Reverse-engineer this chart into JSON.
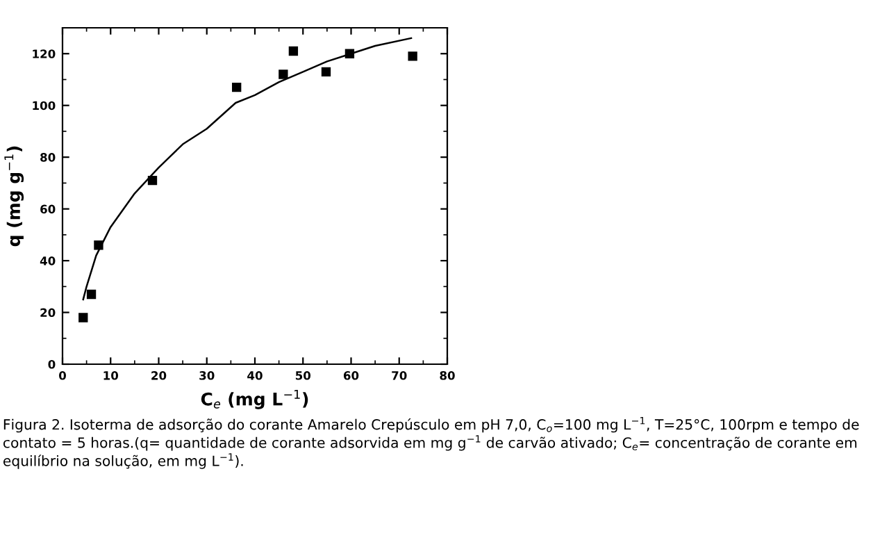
{
  "chart_data": {
    "type": "scatter",
    "xlabel": "C$_{e}$ (mg L$^{−1}$)",
    "ylabel": "q (mg g$^{−1}$)",
    "xlim": [
      0,
      80
    ],
    "ylim": [
      0,
      130
    ],
    "xticks": [
      0,
      10,
      20,
      30,
      40,
      50,
      60,
      70,
      80
    ],
    "yticks": [
      0,
      20,
      40,
      60,
      80,
      100,
      120
    ],
    "grid": false,
    "series": [
      {
        "marker": "square",
        "color": "#000000",
        "x": [
          4.3,
          6,
          7.5,
          18.7,
          36.2,
          45.9,
          48,
          54.8,
          59.7,
          72.8
        ],
        "values": [
          18,
          27,
          46,
          71,
          107,
          112,
          121,
          113,
          120,
          119
        ]
      },
      {
        "type": "line",
        "marker": "none",
        "color": "#000000",
        "x": [
          4.3,
          5,
          7,
          10,
          15,
          20,
          25,
          30,
          36,
          40,
          45,
          50,
          55,
          60,
          65,
          72.5
        ],
        "values": [
          25,
          30,
          42,
          53,
          66,
          76,
          85,
          91,
          101,
          104,
          109,
          113,
          117,
          120,
          123,
          126
        ]
      }
    ],
    "annotations": [
      "Figura 2. Isoterma de adsorção do corante Amarelo Crepúsculo em pH 7,0, C$_{o}$=100 mg L$^{−1}$, T=25°C, 100rpm e tempo de contato = 5 horas.(q= quantidade de corante adsorvida em mg g$^{−1}$ de carvão ativado; C$_{e}$= concentração de corante em equilíbrio na solução, em mg L$^{−1}$)."
    ]
  }
}
